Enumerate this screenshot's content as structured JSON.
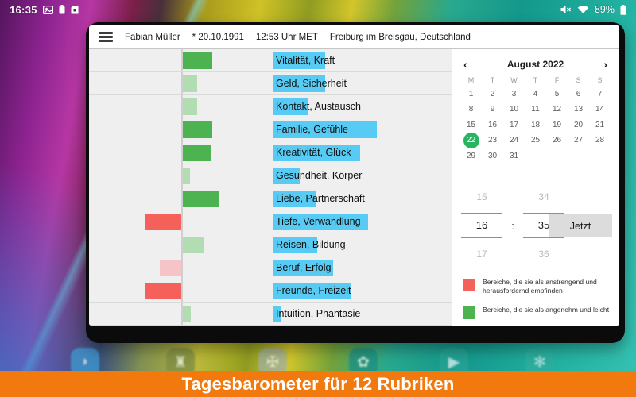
{
  "status_bar": {
    "time": "16:35",
    "battery_percent": "89%"
  },
  "window_header": {
    "segments": [
      "Fabian Müller",
      "* 20.10.1991",
      "12:53 Uhr MET",
      "Freiburg im Breisgau,  Deutschland"
    ]
  },
  "chart_data": {
    "type": "bar",
    "orientation": "horizontal",
    "description": "Zero-centered daily barometer; green bars = pleasant (right), red bars = challenging (left); blue bars mark the category labels",
    "colors": {
      "green_strong": "#4db350",
      "green_light": "#b2dcb2",
      "red_strong": "#f6605a",
      "red_light": "#f4c4c8",
      "blue": "#58cbf4"
    },
    "rows": [
      {
        "label": "Vitalität, Kraft",
        "value": 37,
        "intensity": "strong",
        "blue_width": 66
      },
      {
        "label": "Geld, Sicherheit",
        "value": 18,
        "intensity": "light",
        "blue_width": 66
      },
      {
        "label": "Kontakt, Austausch",
        "value": 18,
        "intensity": "light",
        "blue_width": 44
      },
      {
        "label": "Familie, Gefühle",
        "value": 37,
        "intensity": "strong",
        "blue_width": 131
      },
      {
        "label": "Kreativität, Glück",
        "value": 36,
        "intensity": "strong",
        "blue_width": 110
      },
      {
        "label": "Gesundheit, Körper",
        "value": 9,
        "intensity": "light",
        "blue_width": 34
      },
      {
        "label": "Liebe, Partnerschaft",
        "value": 45,
        "intensity": "strong",
        "blue_width": 55
      },
      {
        "label": "Tiefe, Verwandlung",
        "value": -46,
        "intensity": "strong",
        "blue_width": 120
      },
      {
        "label": "Reisen, Bildung",
        "value": 27,
        "intensity": "light",
        "blue_width": 56
      },
      {
        "label": "Beruf, Erfolg",
        "value": -27,
        "intensity": "light",
        "blue_width": 76
      },
      {
        "label": "Freunde, Freizeit",
        "value": -46,
        "intensity": "strong",
        "blue_width": 99
      },
      {
        "label": "Intuition, Phantasie",
        "value": 10,
        "intensity": "light",
        "blue_width": 10
      }
    ]
  },
  "calendar": {
    "prev": "‹",
    "next": "›",
    "title": "August 2022",
    "weekdays": [
      "M",
      "T",
      "W",
      "T",
      "F",
      "S",
      "S"
    ],
    "weeks": [
      [
        "1",
        "2",
        "3",
        "4",
        "5",
        "6",
        "7"
      ],
      [
        "8",
        "9",
        "10",
        "11",
        "12",
        "13",
        "14"
      ],
      [
        "15",
        "16",
        "17",
        "18",
        "19",
        "20",
        "21"
      ],
      [
        "22",
        "23",
        "24",
        "25",
        "26",
        "27",
        "28"
      ],
      [
        "29",
        "30",
        "31",
        "",
        "",
        "",
        ""
      ]
    ],
    "selected_day": "22",
    "selected_color": "#29b462"
  },
  "time_picker": {
    "hour_prev": "15",
    "minute_prev": "34",
    "hour": "16",
    "colon": ":",
    "minute": "35",
    "hour_next": "17",
    "minute_next": "36",
    "now_button": "Jetzt"
  },
  "legend": [
    {
      "color": "#f6605a",
      "text": "Bereiche, die sie als anstrengend und herausfordernd empfinden"
    },
    {
      "color": "#4db350",
      "text": "Bereiche, die sie als angenehm und leicht"
    }
  ],
  "dock": {
    "icons": [
      {
        "name": "swan-app-icon",
        "glyph": "◗",
        "bg": "#3d9fd6"
      },
      {
        "name": "castle-app-icon",
        "glyph": "♜",
        "bg": "#7c8c46"
      },
      {
        "name": "exit-shield-app-icon",
        "glyph": "✠",
        "bg": "#9fb0aa"
      },
      {
        "name": "flower-app-icon",
        "glyph": "✿",
        "bg": "#178f88"
      },
      {
        "name": "play-store-icon",
        "glyph": "▶",
        "bg": "#27a496"
      },
      {
        "name": "pinwheel-app-icon",
        "glyph": "✻",
        "bg": "#2fae9f"
      }
    ]
  },
  "banner": {
    "text": "Tagesbarometer für 12 Rubriken",
    "bg": "#f2790d"
  }
}
